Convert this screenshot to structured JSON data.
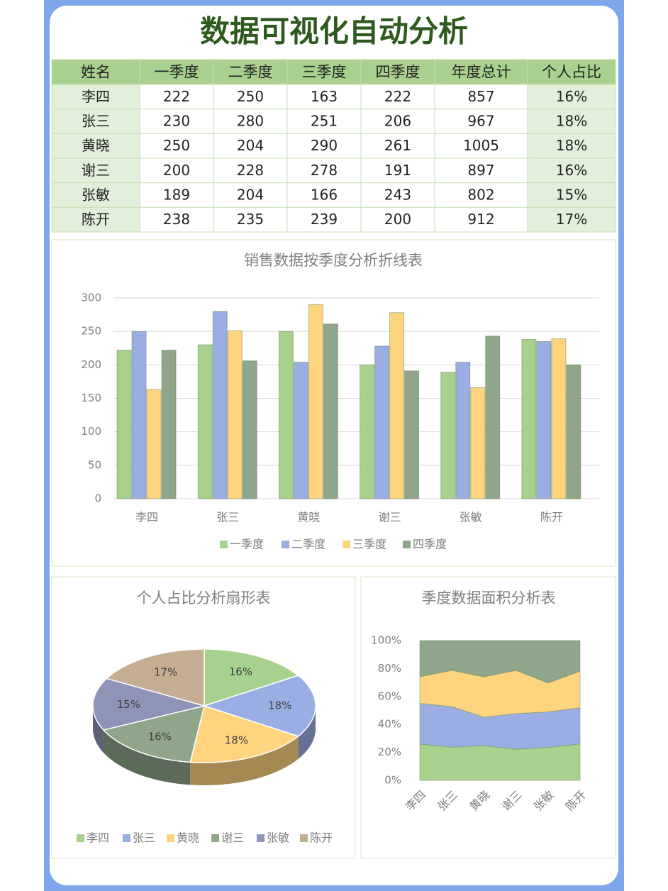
{
  "title": "数据可视化自动分析",
  "table": {
    "header": [
      "姓名",
      "一季度",
      "二季度",
      "三季度",
      "四季度",
      "年度总计",
      "个人占比"
    ],
    "rows": [
      [
        "李四",
        222,
        250,
        163,
        222,
        857,
        "16%"
      ],
      [
        "张三",
        230,
        280,
        251,
        206,
        967,
        "18%"
      ],
      [
        "黄晓",
        250,
        204,
        290,
        261,
        1005,
        "18%"
      ],
      [
        "谢三",
        200,
        228,
        278,
        191,
        897,
        "16%"
      ],
      [
        "张敏",
        189,
        204,
        166,
        243,
        802,
        "15%"
      ],
      [
        "陈开",
        238,
        235,
        239,
        200,
        912,
        "17%"
      ]
    ]
  },
  "chart_data": [
    {
      "type": "bar",
      "title": "销售数据按季度分析折线表",
      "categories": [
        "李四",
        "张三",
        "黄晓",
        "谢三",
        "张敏",
        "陈开"
      ],
      "series": [
        {
          "name": "一季度",
          "color": "#a9d18e",
          "values": [
            222,
            230,
            250,
            200,
            189,
            238
          ]
        },
        {
          "name": "二季度",
          "color": "#9aaee3",
          "values": [
            250,
            280,
            204,
            228,
            204,
            235
          ]
        },
        {
          "name": "三季度",
          "color": "#ffd47f",
          "values": [
            163,
            251,
            290,
            278,
            166,
            239
          ]
        },
        {
          "name": "四季度",
          "color": "#8fa68a",
          "values": [
            222,
            206,
            261,
            191,
            243,
            200
          ]
        }
      ],
      "ylim": [
        0,
        300
      ],
      "yticks": [
        0,
        50,
        100,
        150,
        200,
        250,
        300
      ],
      "grid": true,
      "legend": "bottom"
    },
    {
      "type": "pie",
      "title": "个人占比分析扇形表",
      "categories": [
        "李四",
        "张三",
        "黄晓",
        "谢三",
        "张敏",
        "陈开"
      ],
      "values": [
        16,
        18,
        18,
        16,
        15,
        17
      ],
      "value_labels": [
        "16%",
        "18%",
        "18%",
        "16%",
        "15%",
        "17%"
      ],
      "colors": [
        "#a9d18e",
        "#9aaee3",
        "#ffd47f",
        "#8fa68a",
        "#8e93b8",
        "#c4ad92"
      ],
      "legend": "bottom"
    },
    {
      "type": "area",
      "stacking": "percent",
      "title": "季度数据面积分析表",
      "categories": [
        "李四",
        "张三",
        "黄晓",
        "谢三",
        "张敏",
        "陈开"
      ],
      "series": [
        {
          "name": "一季度",
          "color": "#a9d18e",
          "values": [
            222,
            230,
            250,
            200,
            189,
            238
          ]
        },
        {
          "name": "二季度",
          "color": "#9aaee3",
          "values": [
            250,
            280,
            204,
            228,
            204,
            235
          ]
        },
        {
          "name": "三季度",
          "color": "#ffd47f",
          "values": [
            163,
            251,
            290,
            278,
            166,
            239
          ]
        },
        {
          "name": "四季度",
          "color": "#8fa68a",
          "values": [
            222,
            206,
            261,
            191,
            243,
            200
          ]
        }
      ],
      "ylim": [
        0,
        100
      ],
      "yticks": [
        {
          "value": 0,
          "label": "0%"
        },
        {
          "value": 20,
          "label": "20%"
        },
        {
          "value": 40,
          "label": "40%"
        },
        {
          "value": 60,
          "label": "60%"
        },
        {
          "value": 80,
          "label": "80%"
        },
        {
          "value": 100,
          "label": "100%"
        }
      ]
    }
  ]
}
